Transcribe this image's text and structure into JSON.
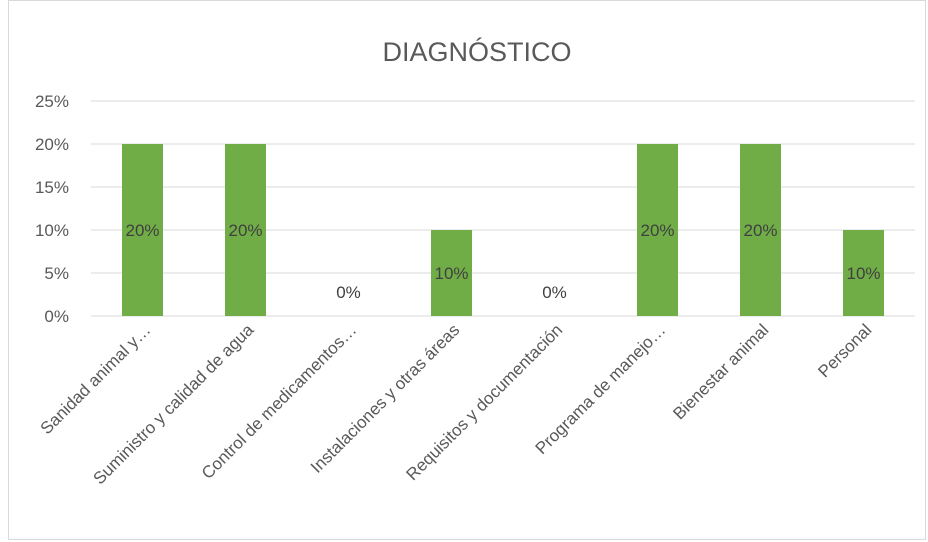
{
  "chart_data": {
    "type": "bar",
    "title": "DIAGNÓSTICO",
    "categories": [
      "Sanidad animal y…",
      "Suministro y calidad de agua",
      "Control de medicamentos…",
      "Instalaciones y otras áreas",
      "Requisitos y documentación",
      "Programa de manejo…",
      "Bienestar animal",
      "Personal"
    ],
    "values": [
      20,
      20,
      0,
      10,
      0,
      20,
      20,
      10
    ],
    "data_labels": [
      "20%",
      "20%",
      "0%",
      "10%",
      "0%",
      "20%",
      "20%",
      "10%"
    ],
    "y_ticks": [
      "0%",
      "5%",
      "10%",
      "15%",
      "20%",
      "25%"
    ],
    "y_tick_values": [
      0,
      5,
      10,
      15,
      20,
      25
    ],
    "ylim": [
      0,
      25
    ],
    "xlabel": "",
    "ylabel": "",
    "grid": true,
    "legend": "none",
    "bar_color": "#70ad47"
  }
}
